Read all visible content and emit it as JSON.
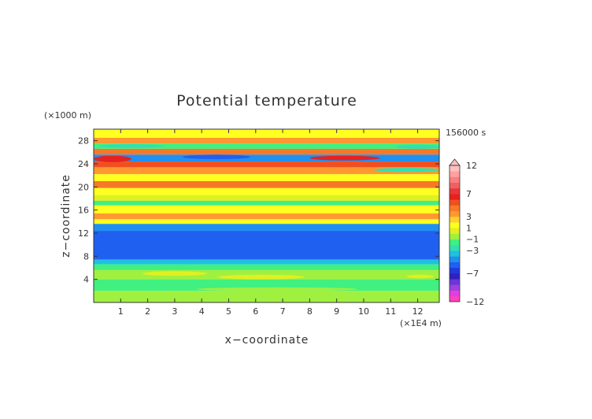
{
  "chart_data": {
    "type": "heatmap",
    "title": "Potential temperature",
    "time_label": "156000 s",
    "xlabel": "x−coordinate",
    "ylabel": "z−coordinate",
    "x_unit": "(×1E4 m)",
    "y_unit": "(×1000 m)",
    "xlim": [
      0,
      12.8
    ],
    "ylim": [
      0,
      30
    ],
    "x_ticks": [
      "1",
      "2",
      "3",
      "4",
      "5",
      "6",
      "7",
      "8",
      "9",
      "10",
      "11",
      "12"
    ],
    "y_ticks": [
      "4",
      "8",
      "12",
      "16",
      "20",
      "24",
      "28"
    ],
    "colorbar": {
      "levels": [
        -12,
        -11,
        -10,
        -9,
        -8,
        -7,
        -6,
        -5,
        -4,
        -3,
        -2,
        -1,
        0,
        1,
        2,
        3,
        4,
        5,
        6,
        7,
        8,
        9,
        10,
        11,
        12
      ],
      "colors": [
        "#ff40c0",
        "#e040e0",
        "#a040e0",
        "#6a38d8",
        "#3020c0",
        "#2038e0",
        "#2060f0",
        "#2090f0",
        "#20c0e0",
        "#30e0b0",
        "#40f080",
        "#a0f040",
        "#e0f020",
        "#ffff20",
        "#ffd030",
        "#ff9830",
        "#f87828",
        "#f05020",
        "#e82020",
        "#e83838",
        "#f06060",
        "#f88080",
        "#ffa0a0",
        "#ffc0c0"
      ],
      "labels": [
        "12",
        "7",
        "3",
        "1",
        "−1",
        "−3",
        "−7",
        "−12"
      ]
    },
    "rows": [
      {
        "z_top": 30,
        "z_bottom": 28.5,
        "value": 1
      },
      {
        "z_top": 28.5,
        "z_bottom": 27.5,
        "value": 3
      },
      {
        "z_top": 27.5,
        "z_bottom": 26.6,
        "value": -2
      },
      {
        "z_top": 26.6,
        "z_bottom": 25.6,
        "value": 4
      },
      {
        "z_top": 25.6,
        "z_bottom": 24.4,
        "value": -5
      },
      {
        "z_top": 24.4,
        "z_bottom": 23.4,
        "value": 5
      },
      {
        "z_top": 23.4,
        "z_bottom": 22.2,
        "value": 3
      },
      {
        "z_top": 22.2,
        "z_bottom": 21.0,
        "value": 1
      },
      {
        "z_top": 21.0,
        "z_bottom": 19.8,
        "value": 4
      },
      {
        "z_top": 19.8,
        "z_bottom": 18.6,
        "value": 1
      },
      {
        "z_top": 18.6,
        "z_bottom": 17.6,
        "value": 0
      },
      {
        "z_top": 17.6,
        "z_bottom": 16.8,
        "value": -2
      },
      {
        "z_top": 16.8,
        "z_bottom": 15.4,
        "value": 1
      },
      {
        "z_top": 15.4,
        "z_bottom": 14.4,
        "value": 3
      },
      {
        "z_top": 14.4,
        "z_bottom": 13.6,
        "value": 1
      },
      {
        "z_top": 13.6,
        "z_bottom": 12.4,
        "value": -5
      },
      {
        "z_top": 12.4,
        "z_bottom": 7.4,
        "value": -6
      },
      {
        "z_top": 7.4,
        "z_bottom": 6.6,
        "value": -4
      },
      {
        "z_top": 6.6,
        "z_bottom": 5.6,
        "value": -2
      },
      {
        "z_top": 5.6,
        "z_bottom": 4.0,
        "value": -1
      },
      {
        "z_top": 4.0,
        "z_bottom": 2.0,
        "value": -2
      },
      {
        "z_top": 2.0,
        "z_bottom": 0,
        "value": -1
      }
    ],
    "patches": [
      {
        "x0": 0.2,
        "x1": 2.6,
        "z0": 26.8,
        "z1": 27.4,
        "value": -3
      },
      {
        "x0": 3.3,
        "x1": 5.8,
        "z0": 24.8,
        "z1": 25.6,
        "value": -6
      },
      {
        "x0": 8.0,
        "x1": 10.6,
        "z0": 24.6,
        "z1": 25.4,
        "value": 6
      },
      {
        "x0": 10.4,
        "x1": 12.8,
        "z0": 22.6,
        "z1": 23.3,
        "value": -3
      },
      {
        "x0": 0.0,
        "x1": 1.4,
        "z0": 24.3,
        "z1": 25.4,
        "value": 6
      },
      {
        "x0": 11.2,
        "x1": 12.8,
        "z0": 26.6,
        "z1": 27.3,
        "value": -3
      },
      {
        "x0": 1.8,
        "x1": 4.2,
        "z0": 4.6,
        "z1": 5.4,
        "value": 0
      },
      {
        "x0": 4.6,
        "x1": 7.8,
        "z0": 4.0,
        "z1": 4.8,
        "value": 0
      },
      {
        "x0": 11.6,
        "x1": 12.6,
        "z0": 4.2,
        "z1": 4.8,
        "value": 0
      },
      {
        "x0": 3.8,
        "x1": 9.8,
        "z0": 2.0,
        "z1": 2.6,
        "value": -1
      }
    ]
  }
}
